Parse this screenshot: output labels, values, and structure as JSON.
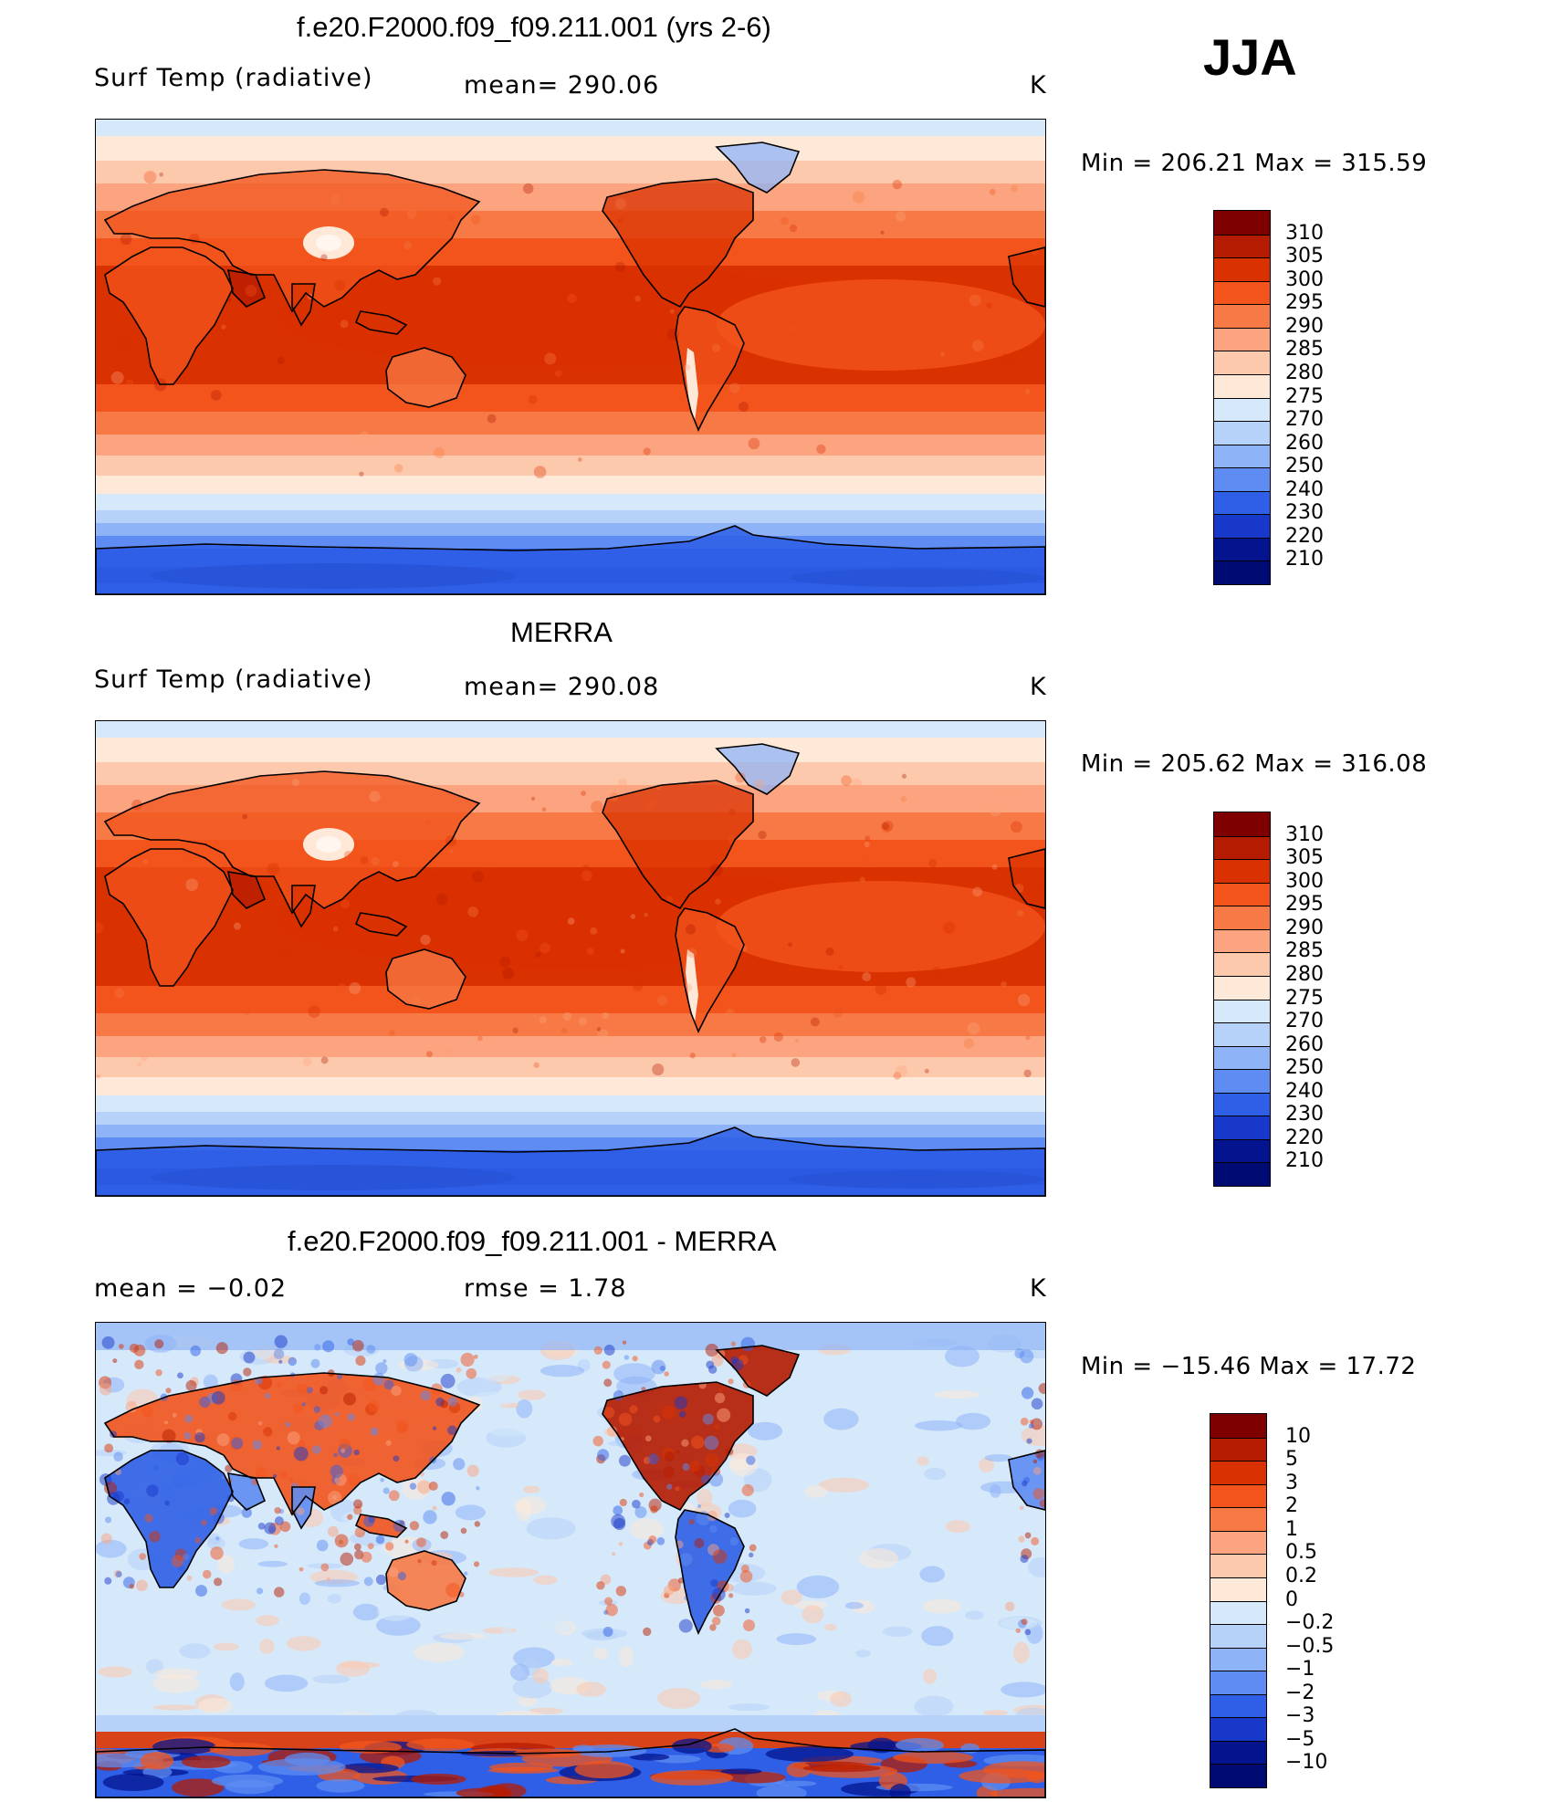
{
  "season": "JJA",
  "panels": [
    {
      "title": "f.e20.F2000.f09_f09.211.001 (yrs 2-6)",
      "left_label": "Surf Temp (radiative)",
      "mid_label": "mean= 290.06",
      "units": "K",
      "minmax": "Min = 206.21 Max = 315.59",
      "kind": "abs",
      "variant": 0
    },
    {
      "title": "MERRA",
      "left_label": "Surf Temp (radiative)",
      "mid_label": "mean= 290.08",
      "units": "K",
      "minmax": "Min = 205.62 Max = 316.08",
      "kind": "abs",
      "variant": 1
    },
    {
      "title": "f.e20.F2000.f09_f09.211.001 - MERRA",
      "left_label": "mean = −0.02",
      "mid_label": "rmse = 1.78",
      "units": "K",
      "minmax": "Min = −15.46 Max = 17.72",
      "kind": "diff",
      "variant": 2
    }
  ],
  "chart_data": [
    {
      "type": "heatmap",
      "title": "f.e20.F2000.f09_f09.211.001 (yrs 2-6)",
      "variable": "Surf Temp (radiative)",
      "units": "K",
      "mean": 290.06,
      "min": 206.21,
      "max": 315.59,
      "colorbar_levels": [
        310,
        305,
        300,
        295,
        290,
        285,
        280,
        275,
        270,
        260,
        250,
        240,
        230,
        220,
        210
      ]
    },
    {
      "type": "heatmap",
      "title": "MERRA",
      "variable": "Surf Temp (radiative)",
      "units": "K",
      "mean": 290.08,
      "min": 205.62,
      "max": 316.08,
      "colorbar_levels": [
        310,
        305,
        300,
        295,
        290,
        285,
        280,
        275,
        270,
        260,
        250,
        240,
        230,
        220,
        210
      ]
    },
    {
      "type": "heatmap",
      "title": "f.e20.F2000.f09_f09.211.001 - MERRA",
      "units": "K",
      "mean": -0.02,
      "rmse": 1.78,
      "min": -15.46,
      "max": 17.72,
      "colorbar_levels": [
        "10",
        "5",
        "3",
        "2",
        "1",
        "0.5",
        "0.2",
        "0",
        "−0.2",
        "−0.5",
        "−1",
        "−2",
        "−3",
        "−5",
        "−10"
      ]
    }
  ],
  "colorbars": {
    "abs_colors": [
      "#7f0000",
      "#b51b00",
      "#d93100",
      "#f2541c",
      "#f77a46",
      "#fca47f",
      "#fdc9ad",
      "#fee9d9",
      "#d6e9fa",
      "#b7d2f8",
      "#8fb3f7",
      "#5e8cf2",
      "#2f5fe6",
      "#1738c8",
      "#04148f",
      "#000a73"
    ],
    "diff_colors": [
      "#7f0000",
      "#b51b00",
      "#d93100",
      "#f2541c",
      "#f77a46",
      "#fca47f",
      "#fdc9ad",
      "#fee9d9",
      "#d6e9fa",
      "#b7d2f8",
      "#8fb3f7",
      "#5e8cf2",
      "#2f5fe6",
      "#1738c8",
      "#04148f",
      "#000a73"
    ],
    "abs_labels": [
      "310",
      "305",
      "300",
      "295",
      "290",
      "285",
      "280",
      "275",
      "270",
      "260",
      "250",
      "240",
      "230",
      "220",
      "210"
    ],
    "diff_labels": [
      "10",
      "5",
      "3",
      "2",
      "1",
      "0.5",
      "0.2",
      "0",
      "−0.2",
      "−0.5",
      "−1",
      "−2",
      "−3",
      "−5",
      "−10"
    ]
  }
}
